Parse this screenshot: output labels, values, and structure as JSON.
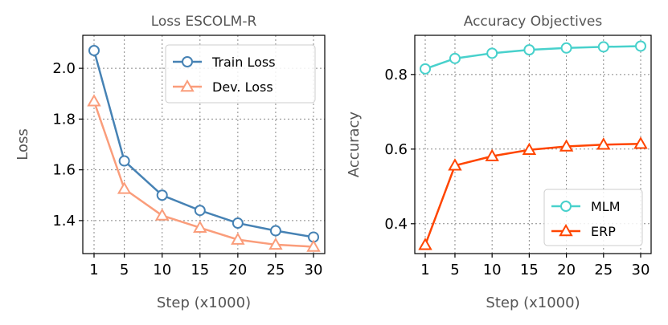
{
  "chart_data": [
    {
      "type": "line",
      "title": "Loss ESCOLM-R",
      "xlabel": "Step (x1000)",
      "ylabel": "Loss",
      "x": [
        1,
        5,
        10,
        15,
        20,
        25,
        30
      ],
      "x_ticks": [
        "1",
        "5",
        "10",
        "15",
        "20",
        "25",
        "30"
      ],
      "y_ticks": [
        1.4,
        1.6,
        1.8,
        2.0
      ],
      "y_tick_labels": [
        "1.4",
        "1.6",
        "1.8",
        "2.0"
      ],
      "ylim": [
        1.27,
        2.13
      ],
      "grid": true,
      "legend_position": "top-right",
      "series": [
        {
          "name": "Train Loss",
          "marker": "circle",
          "color": "#4682b4",
          "values": [
            2.07,
            1.635,
            1.5,
            1.44,
            1.39,
            1.36,
            1.335
          ]
        },
        {
          "name": "Dev. Loss",
          "marker": "triangle",
          "color": "#fa9d7b",
          "values": [
            1.87,
            1.525,
            1.42,
            1.372,
            1.325,
            1.305,
            1.297
          ]
        }
      ]
    },
    {
      "type": "line",
      "title": "Accuracy Objectives",
      "xlabel": "Step (x1000)",
      "ylabel": "Accuracy",
      "x": [
        1,
        5,
        10,
        15,
        20,
        25,
        30
      ],
      "x_ticks": [
        "1",
        "5",
        "10",
        "15",
        "20",
        "25",
        "30"
      ],
      "y_ticks": [
        0.4,
        0.6,
        0.8
      ],
      "y_tick_labels": [
        "0.4",
        "0.6",
        "0.8"
      ],
      "ylim": [
        0.32,
        0.905
      ],
      "grid": true,
      "legend_position": "bottom-right",
      "series": [
        {
          "name": "MLM",
          "marker": "circle",
          "color": "#48d1cc",
          "values": [
            0.815,
            0.843,
            0.857,
            0.866,
            0.871,
            0.874,
            0.876
          ]
        },
        {
          "name": "ERP",
          "marker": "triangle",
          "color": "#ff4500",
          "values": [
            0.343,
            0.556,
            0.581,
            0.598,
            0.607,
            0.612,
            0.614
          ]
        }
      ]
    }
  ]
}
